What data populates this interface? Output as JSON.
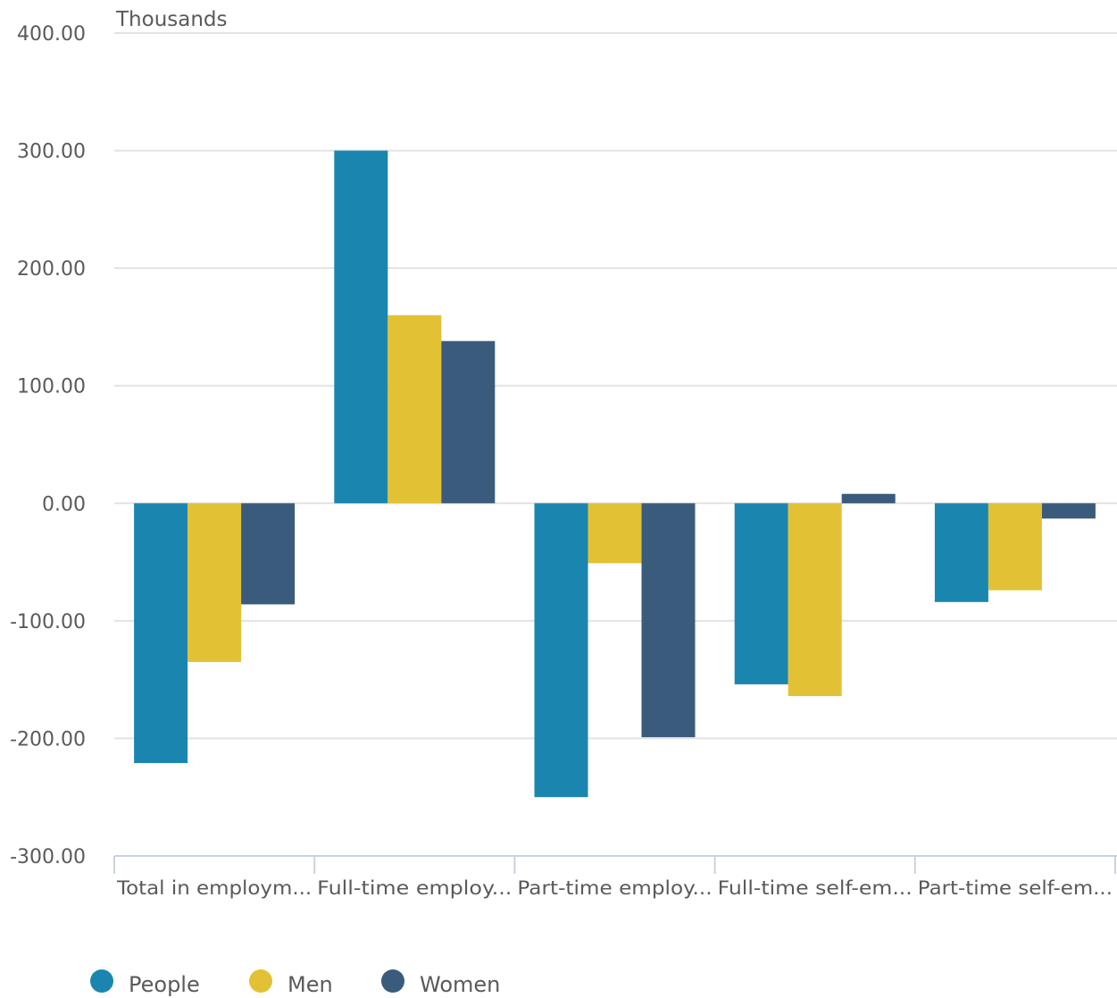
{
  "chart_data": {
    "type": "bar",
    "unit_label": "Thousands",
    "categories": [
      "Total in employm...",
      "Full-time employ...",
      "Part-time employ...",
      "Full-time self-em...",
      "Part-time self-em..."
    ],
    "series": [
      {
        "name": "People",
        "color": "#1a86b0",
        "values": [
          -221,
          300,
          -250,
          -154,
          -84
        ]
      },
      {
        "name": "Men",
        "color": "#e3c135",
        "values": [
          -135,
          160,
          -51,
          -164,
          -74
        ]
      },
      {
        "name": "Women",
        "color": "#3a5b7c",
        "values": [
          -86,
          138,
          -199,
          8,
          -13
        ]
      }
    ],
    "yticks": [
      "400.00",
      "300.00",
      "200.00",
      "100.00",
      "0.00",
      "-100.00",
      "-200.00",
      "-300.00"
    ],
    "ylim": [
      -300,
      400
    ],
    "grid": true,
    "legend_position": "bottom-left"
  }
}
